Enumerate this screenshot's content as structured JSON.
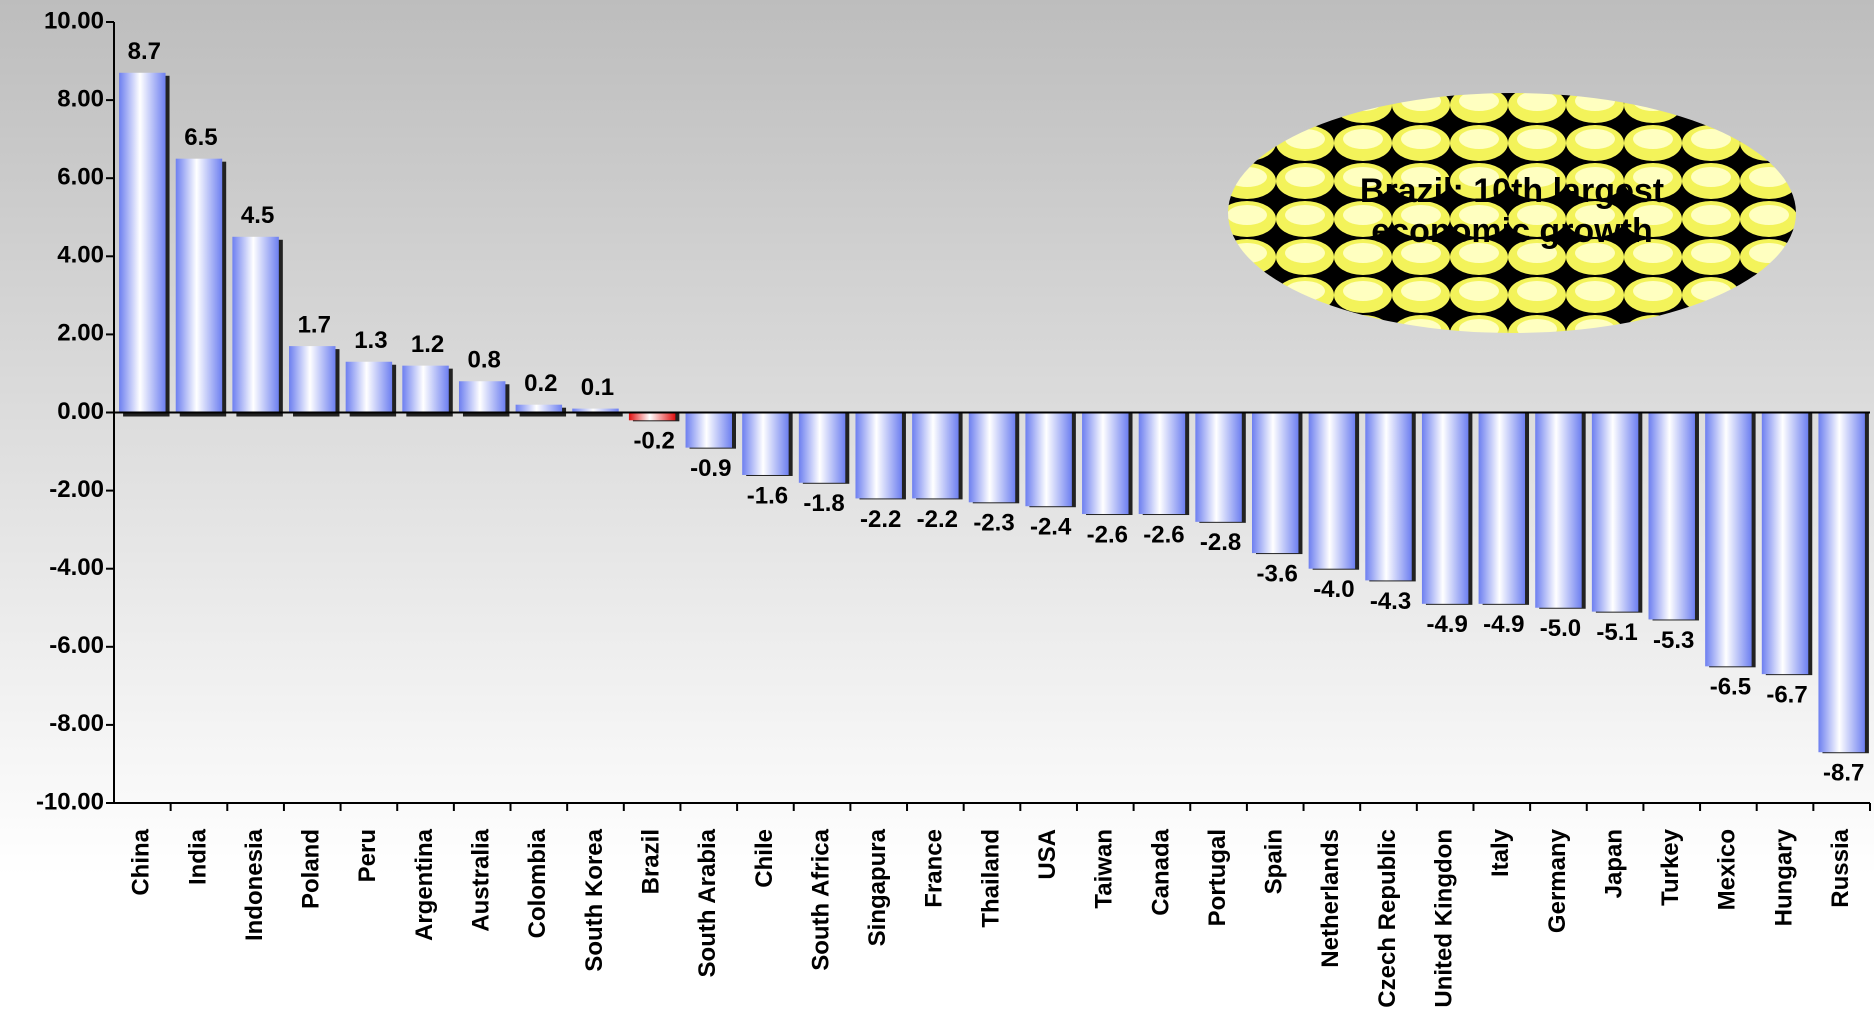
{
  "chart_data": {
    "type": "bar",
    "categories": [
      "China",
      "India",
      "Indonesia",
      "Poland",
      "Peru",
      "Argentina",
      "Australia",
      "Colombia",
      "South Korea",
      "Brazil",
      "South Arabia",
      "Chile",
      "South Africa",
      "Singapura",
      "France",
      "Thailand",
      "USA",
      "Taiwan",
      "Canada",
      "Portugal",
      "Spain",
      "Netherlands",
      "Czech Republic",
      "United Kingdon",
      "Italy",
      "Germany",
      "Japan",
      "Turkey",
      "Mexico",
      "Hungary",
      "Russia"
    ],
    "values": [
      8.7,
      6.5,
      4.5,
      1.7,
      1.3,
      1.2,
      0.8,
      0.2,
      0.1,
      -0.2,
      -0.9,
      -1.6,
      -1.8,
      -2.2,
      -2.2,
      -2.3,
      -2.4,
      -2.6,
      -2.6,
      -2.8,
      -3.6,
      -4.0,
      -4.3,
      -4.9,
      -4.9,
      -5.0,
      -5.1,
      -5.3,
      -6.5,
      -6.7,
      -8.7
    ],
    "value_labels": [
      "8.7",
      "6.5",
      "4.5",
      "1.7",
      "1.3",
      "1.2",
      "0.8",
      "0.2",
      "0.1",
      "-0.2",
      "-0.9",
      "-1.6",
      "-1.8",
      "-2.2",
      "-2.2",
      "-2.3",
      "-2.4",
      "-2.6",
      "-2.6",
      "-2.8",
      "-3.6",
      "-4.0",
      "-4.3",
      "-4.9",
      "-4.9",
      "-5.0",
      "-5.1",
      "-5.3",
      "-6.5",
      "-6.7",
      "-8.7"
    ],
    "colors": [
      "#6d7ff0",
      "#6d7ff0",
      "#6d7ff0",
      "#6d7ff0",
      "#6d7ff0",
      "#6d7ff0",
      "#6d7ff0",
      "#6d7ff0",
      "#6d7ff0",
      "#e01010",
      "#6d7ff0",
      "#6d7ff0",
      "#6d7ff0",
      "#6d7ff0",
      "#6d7ff0",
      "#6d7ff0",
      "#6d7ff0",
      "#6d7ff0",
      "#6d7ff0",
      "#6d7ff0",
      "#6d7ff0",
      "#6d7ff0",
      "#6d7ff0",
      "#6d7ff0",
      "#6d7ff0",
      "#6d7ff0",
      "#6d7ff0",
      "#6d7ff0",
      "#6d7ff0",
      "#6d7ff0",
      "#6d7ff0"
    ],
    "ylim": [
      -10,
      10
    ],
    "yticks": [
      {
        "value": 10,
        "label": "10.00"
      },
      {
        "value": 8,
        "label": "8.00"
      },
      {
        "value": 6,
        "label": "6.00"
      },
      {
        "value": 4,
        "label": "4.00"
      },
      {
        "value": 2,
        "label": "2.00"
      },
      {
        "value": 0,
        "label": "0.00"
      },
      {
        "value": -2,
        "label": "-2.00"
      },
      {
        "value": -4,
        "label": "-4.00"
      },
      {
        "value": -6,
        "label": "-6.00"
      },
      {
        "value": -8,
        "label": "-8.00"
      },
      {
        "value": -10,
        "label": "-10.00"
      }
    ],
    "annotation": "Brazil: 10th  largest economic growth"
  }
}
